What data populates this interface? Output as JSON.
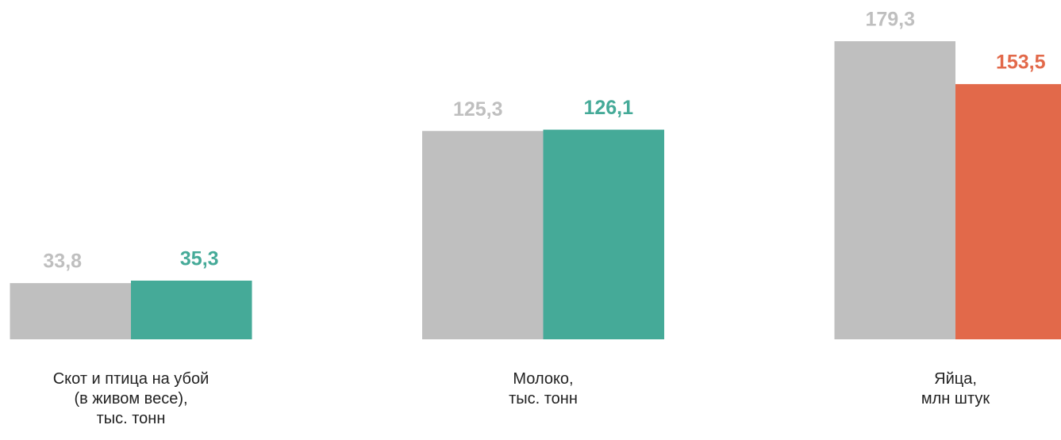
{
  "chart_data": {
    "type": "bar",
    "categories": [
      "Скот и птица на убой\n(в живом весе),\nтыс. тонн",
      "Молоко,\nтыс. тонн",
      "Яйца,\nмлн штук"
    ],
    "series": [
      {
        "color": "#bfbfbf",
        "values": [
          33.8,
          125.3,
          179.3
        ],
        "value_labels": [
          "33,8",
          "125,3",
          "179,3"
        ]
      },
      {
        "colors": [
          "#45aa98",
          "#45aa98",
          "#e2694a"
        ],
        "values": [
          35.3,
          126.1,
          153.5
        ],
        "value_labels": [
          "35,3",
          "126,1",
          "153,5"
        ]
      }
    ]
  }
}
